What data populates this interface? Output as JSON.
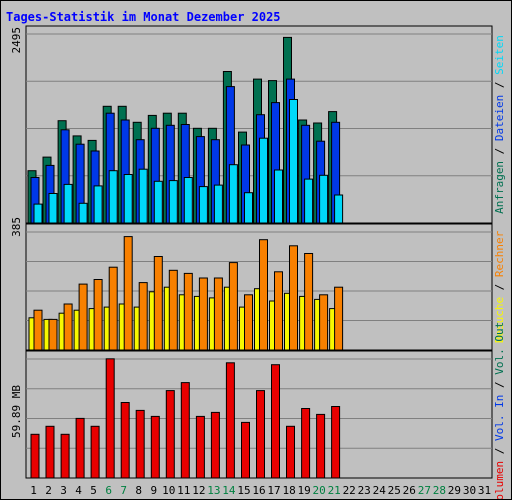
{
  "colors": {
    "background": "#c0c0c0",
    "title": "#0000ff",
    "anfragen": "#007050",
    "dateien": "#0038e8",
    "seiten": "#00d8f8",
    "besuche": "#f8f800",
    "rechner": "#f88000",
    "volumen": "#e80000",
    "weekend": "#008040",
    "weekday": "#000000"
  },
  "chart_data": [
    {
      "type": "bar",
      "title": "Tages-Statistik im Monat Dezember 2025",
      "categories": [
        "1",
        "2",
        "3",
        "4",
        "5",
        "6",
        "7",
        "8",
        "9",
        "10",
        "11",
        "12",
        "13",
        "14",
        "15",
        "16",
        "17",
        "18",
        "19",
        "20",
        "21",
        "22",
        "23",
        "24",
        "25",
        "26",
        "27",
        "28",
        "29",
        "30",
        "31"
      ],
      "weekend_days": [
        "6",
        "7",
        "13",
        "14",
        "20",
        "21",
        "27",
        "28"
      ],
      "ymax_label": "2495",
      "ylim": [
        0,
        2495
      ],
      "grid": true,
      "legend_side": "right",
      "legend": [
        {
          "key": "anfragen",
          "label": "Anfragen"
        },
        {
          "key": "dateien",
          "label": "Dateien"
        },
        {
          "key": "seiten",
          "label": "Seiten"
        }
      ],
      "series": [
        {
          "name": "Anfragen",
          "key": "anfragen",
          "values": [
            690,
            870,
            1350,
            1150,
            1090,
            1540,
            1540,
            1330,
            1420,
            1450,
            1450,
            1250,
            1250,
            2000,
            1200,
            1900,
            1880,
            2450,
            1360,
            1320,
            1470,
            null,
            null,
            null,
            null,
            null,
            null,
            null,
            null,
            null,
            null
          ]
        },
        {
          "name": "Dateien",
          "key": "dateien",
          "values": [
            600,
            760,
            1230,
            1040,
            950,
            1450,
            1360,
            1100,
            1250,
            1290,
            1300,
            1140,
            1100,
            1800,
            1030,
            1430,
            1590,
            1900,
            1290,
            1080,
            1330,
            null,
            null,
            null,
            null,
            null,
            null,
            null,
            null,
            null,
            null
          ]
        },
        {
          "name": "Seiten",
          "key": "seiten",
          "values": [
            250,
            390,
            510,
            260,
            490,
            690,
            640,
            710,
            550,
            560,
            600,
            480,
            500,
            770,
            400,
            1120,
            700,
            1630,
            580,
            630,
            370,
            null,
            null,
            null,
            null,
            null,
            null,
            null,
            null,
            null,
            null
          ]
        }
      ]
    },
    {
      "type": "bar",
      "categories": [
        "1",
        "2",
        "3",
        "4",
        "5",
        "6",
        "7",
        "8",
        "9",
        "10",
        "11",
        "12",
        "13",
        "14",
        "15",
        "16",
        "17",
        "18",
        "19",
        "20",
        "21",
        "22",
        "23",
        "24",
        "25",
        "26",
        "27",
        "28",
        "29",
        "30",
        "31"
      ],
      "ymax_label": "385",
      "ylim": [
        0,
        385
      ],
      "grid": true,
      "legend_side": "right",
      "legend": [
        {
          "key": "besuche",
          "label": "Besuche"
        },
        {
          "key": "rechner",
          "label": "Rechner"
        }
      ],
      "series": [
        {
          "name": "Besuche",
          "key": "besuche",
          "values": [
            105,
            100,
            120,
            130,
            135,
            140,
            150,
            140,
            190,
            205,
            180,
            175,
            170,
            205,
            140,
            200,
            160,
            185,
            175,
            165,
            135,
            null,
            null,
            null,
            null,
            null,
            null,
            null,
            null,
            null,
            null
          ]
        },
        {
          "name": "Rechner",
          "key": "rechner",
          "values": [
            130,
            100,
            150,
            215,
            230,
            270,
            370,
            220,
            305,
            260,
            250,
            235,
            235,
            285,
            180,
            360,
            255,
            340,
            315,
            180,
            205,
            null,
            null,
            null,
            null,
            null,
            null,
            null,
            null,
            null,
            null
          ]
        }
      ]
    },
    {
      "type": "bar",
      "categories": [
        "1",
        "2",
        "3",
        "4",
        "5",
        "6",
        "7",
        "8",
        "9",
        "10",
        "11",
        "12",
        "13",
        "14",
        "15",
        "16",
        "17",
        "18",
        "19",
        "20",
        "21",
        "22",
        "23",
        "24",
        "25",
        "26",
        "27",
        "28",
        "29",
        "30",
        "31"
      ],
      "ymax_label": "59.89 MB",
      "ylim": [
        0,
        59.89
      ],
      "grid": true,
      "legend_side": "right",
      "legend": [
        {
          "key": "volumen",
          "label": "Volumen"
        },
        {
          "key": "weekday",
          "label": "/"
        },
        {
          "key": "dateien",
          "label": "Vol. In"
        },
        {
          "key": "weekday",
          "label": "/"
        },
        {
          "key": "anfragen",
          "label": "Vol. Out"
        }
      ],
      "series": [
        {
          "name": "Volumen",
          "key": "volumen",
          "values": [
            22,
            26,
            22,
            30,
            26,
            60,
            38,
            34,
            31,
            44,
            48,
            31,
            33,
            58,
            28,
            44,
            57,
            26,
            35,
            32,
            36,
            null,
            null,
            null,
            null,
            null,
            null,
            null,
            null,
            null,
            null
          ]
        }
      ]
    }
  ]
}
